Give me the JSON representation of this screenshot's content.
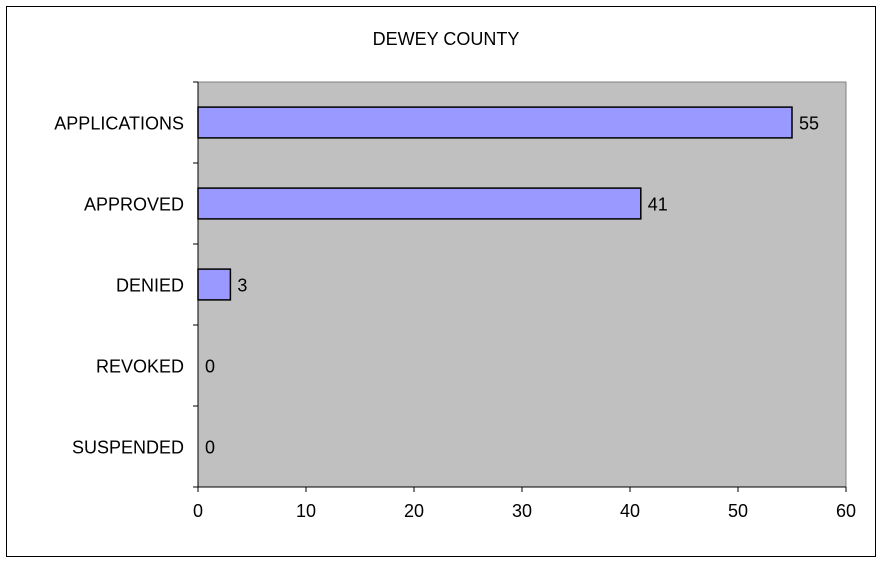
{
  "chart_data": {
    "type": "bar",
    "orientation": "horizontal",
    "title": "DEWEY COUNTY",
    "xlabel": "",
    "ylabel": "",
    "categories": [
      "APPLICATIONS",
      "APPROVED",
      "DENIED",
      "REVOKED",
      "SUSPENDED"
    ],
    "values": [
      55,
      41,
      3,
      0,
      0
    ],
    "xlim": [
      0,
      60
    ],
    "xticks": [
      0,
      10,
      20,
      30,
      40,
      50,
      60
    ],
    "grid": false,
    "legend": "none",
    "colors": {
      "bar_fill": "#9999ff",
      "plot_background": "#c0c0c0",
      "bar_stroke": "#000000"
    }
  }
}
